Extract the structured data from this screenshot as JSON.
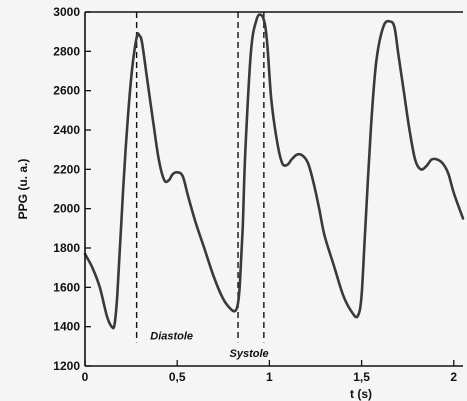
{
  "chart_data": {
    "type": "line",
    "xlabel": "t (s)",
    "ylabel": "PPG (u. a.)",
    "xlim": [
      0,
      2.05
    ],
    "ylim": [
      1200,
      3000
    ],
    "xticks": [
      {
        "value": 0,
        "label": "0"
      },
      {
        "value": 0.5,
        "label": "0,5"
      },
      {
        "value": 1.0,
        "label": "1"
      },
      {
        "value": 1.5,
        "label": "1,5"
      },
      {
        "value": 2.0,
        "label": "2"
      }
    ],
    "yticks": [
      {
        "value": 1200,
        "label": "1200"
      },
      {
        "value": 1400,
        "label": "1400"
      },
      {
        "value": 1600,
        "label": "1600"
      },
      {
        "value": 1800,
        "label": "1800"
      },
      {
        "value": 2000,
        "label": "2000"
      },
      {
        "value": 2200,
        "label": "2200"
      },
      {
        "value": 2400,
        "label": "2400"
      },
      {
        "value": 2600,
        "label": "2600"
      },
      {
        "value": 2800,
        "label": "2800"
      },
      {
        "value": 3000,
        "label": "3000"
      }
    ],
    "grid": false,
    "series": [
      {
        "x": [
          0,
          0.04,
          0.08,
          0.12,
          0.145,
          0.16,
          0.175,
          0.195,
          0.22,
          0.25,
          0.28,
          0.295,
          0.31,
          0.34,
          0.37,
          0.4,
          0.43,
          0.455,
          0.475,
          0.5,
          0.53,
          0.56,
          0.6,
          0.65,
          0.7,
          0.75,
          0.79,
          0.815,
          0.83,
          0.84,
          0.855,
          0.87,
          0.9,
          0.93,
          0.955,
          0.975,
          0.99,
          1.01,
          1.04,
          1.07,
          1.1,
          1.12,
          1.15,
          1.18,
          1.21,
          1.24,
          1.27,
          1.3,
          1.35,
          1.4,
          1.45,
          1.48,
          1.5,
          1.52,
          1.55,
          1.58,
          1.62,
          1.66,
          1.68,
          1.7,
          1.73,
          1.76,
          1.79,
          1.82,
          1.85,
          1.88,
          1.91,
          1.94,
          1.97,
          2.0,
          2.05
        ],
        "values": [
          1770,
          1700,
          1600,
          1450,
          1400,
          1410,
          1560,
          1900,
          2300,
          2660,
          2870,
          2880,
          2840,
          2640,
          2440,
          2250,
          2145,
          2145,
          2175,
          2185,
          2165,
          2060,
          1930,
          1790,
          1650,
          1540,
          1490,
          1480,
          1520,
          1620,
          1900,
          2300,
          2800,
          2960,
          2985,
          2940,
          2820,
          2560,
          2350,
          2230,
          2225,
          2250,
          2275,
          2270,
          2230,
          2130,
          2000,
          1860,
          1710,
          1560,
          1470,
          1455,
          1560,
          1900,
          2400,
          2750,
          2930,
          2950,
          2915,
          2780,
          2590,
          2400,
          2250,
          2200,
          2215,
          2250,
          2250,
          2230,
          2180,
          2080,
          1950
        ]
      }
    ],
    "annotations": [
      {
        "text": "Diastole",
        "x": 0.47,
        "y": 1355
      },
      {
        "text": "Systole",
        "x": 0.89,
        "y": 1265
      }
    ],
    "reference_lines": [
      {
        "x": 0.28,
        "y_from": 1320,
        "y_to": 3000
      },
      {
        "x": 0.83,
        "y_from": 1320,
        "y_to": 3000
      },
      {
        "x": 0.97,
        "y_from": 1320,
        "y_to": 3000
      }
    ]
  },
  "colors": {
    "background": "#f5f5f5",
    "axis": "#111111",
    "line": "#3a3a3a",
    "dash": "#111111"
  }
}
